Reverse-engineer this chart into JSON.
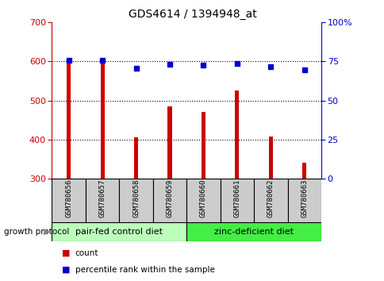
{
  "title": "GDS4614 / 1394948_at",
  "samples": [
    "GSM780656",
    "GSM780657",
    "GSM780658",
    "GSM780659",
    "GSM780660",
    "GSM780661",
    "GSM780662",
    "GSM780663"
  ],
  "counts": [
    597,
    601,
    405,
    484,
    471,
    526,
    407,
    340
  ],
  "percentiles": [
    75.5,
    75.5,
    70.5,
    73.0,
    72.5,
    73.5,
    71.5,
    69.5
  ],
  "ylim_left": [
    300,
    700
  ],
  "ylim_right": [
    0,
    100
  ],
  "yticks_left": [
    300,
    400,
    500,
    600,
    700
  ],
  "yticks_right": [
    0,
    25,
    50,
    75,
    100
  ],
  "groups": [
    {
      "label": "pair-fed control diet",
      "start": 0,
      "end": 3,
      "color": "#bbffbb"
    },
    {
      "label": "zinc-deficient diet",
      "start": 4,
      "end": 7,
      "color": "#44ee44"
    }
  ],
  "bar_color": "#cc0000",
  "dot_color": "#0000cc",
  "left_axis_color": "#cc0000",
  "right_axis_color": "#0000cc",
  "grid_color": "black",
  "bg_color": "#ffffff",
  "sample_box_color": "#cccccc",
  "growth_protocol_label": "growth protocol",
  "legend_count_label": "count",
  "legend_percentile_label": "percentile rank within the sample",
  "bar_width": 0.12,
  "dot_size": 5,
  "title_fontsize": 10,
  "tick_fontsize": 8,
  "sample_fontsize": 6.5,
  "group_fontsize": 8,
  "legend_fontsize": 7.5
}
